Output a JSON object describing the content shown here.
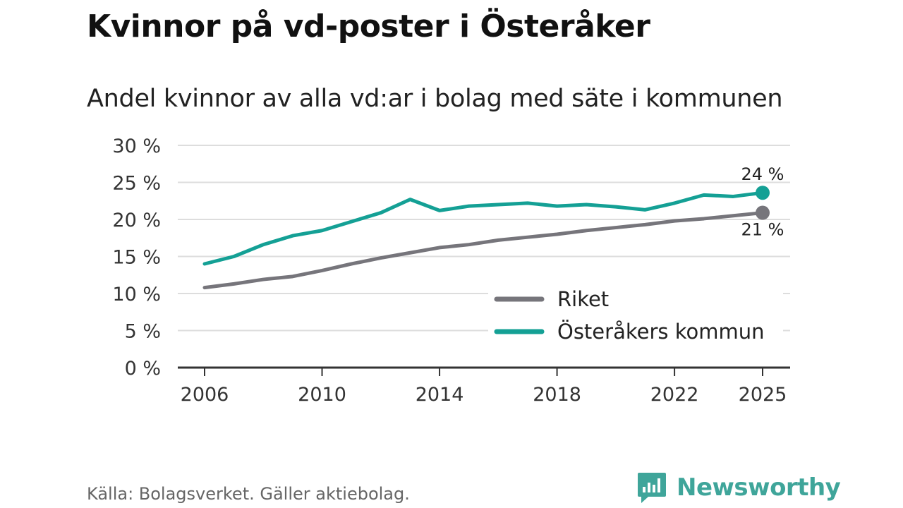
{
  "title": "Kvinnor på vd-poster i Österåker",
  "subtitle": "Andel kvinnor av alla vd:ar i bolag med säte i kommunen",
  "source": "Källa: Bolagsverket. Gäller aktiebolag.",
  "brand": {
    "name": "Newsworthy",
    "icon": "newsworthy-logo-icon"
  },
  "colors": {
    "riket": "#76757b",
    "osteraker": "#14a095",
    "grid": "#dddddd",
    "axis": "#333333"
  },
  "chart_data": {
    "type": "line",
    "title": "Kvinnor på vd-poster i Österåker",
    "subtitle": "Andel kvinnor av alla vd:ar i bolag med säte i kommunen",
    "xlabel": "",
    "ylabel": "",
    "ylim": [
      0,
      30
    ],
    "xlim": [
      2006,
      2025
    ],
    "x_ticks": [
      2006,
      2010,
      2014,
      2018,
      2022,
      2025
    ],
    "x_tick_labels": [
      "2006",
      "2010",
      "2014",
      "2018",
      "2022",
      "2025"
    ],
    "y_ticks": [
      0,
      5,
      10,
      15,
      20,
      25,
      30
    ],
    "y_tick_labels": [
      "0 %",
      "5 %",
      "10 %",
      "15 %",
      "20 %",
      "25 %",
      "30 %"
    ],
    "grid": true,
    "legend_position": "bottom-right",
    "x": [
      2006,
      2007,
      2008,
      2009,
      2010,
      2011,
      2012,
      2013,
      2014,
      2015,
      2016,
      2017,
      2018,
      2019,
      2020,
      2021,
      2022,
      2023,
      2024,
      2025
    ],
    "series": [
      {
        "name": "Riket",
        "color": "#76757b",
        "values": [
          10.8,
          11.3,
          11.9,
          12.3,
          13.1,
          14.0,
          14.8,
          15.5,
          16.2,
          16.6,
          17.2,
          17.6,
          18.0,
          18.5,
          18.9,
          19.3,
          19.8,
          20.1,
          20.5,
          20.9
        ],
        "end_label": "21 %"
      },
      {
        "name": "Österåkers kommun",
        "color": "#14a095",
        "values": [
          14.0,
          15.0,
          16.6,
          17.8,
          18.5,
          19.7,
          20.9,
          22.7,
          21.2,
          21.8,
          22.0,
          22.2,
          21.8,
          22.0,
          21.7,
          21.3,
          22.2,
          23.3,
          23.1,
          23.6
        ],
        "end_label": "24 %"
      }
    ]
  }
}
